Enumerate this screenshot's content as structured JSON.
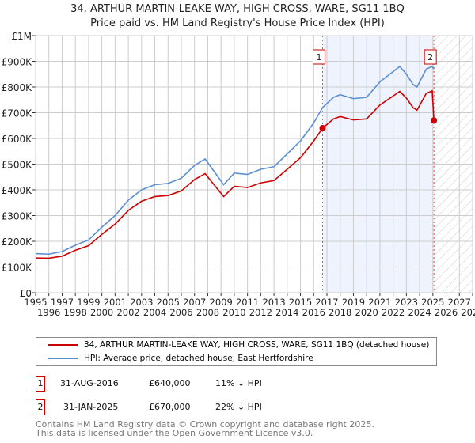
{
  "title": "34, ARTHUR MARTIN-LEAKE WAY, HIGH CROSS, WARE, SG11 1BQ",
  "subtitle": "Price paid vs. HM Land Registry's House Price Index (HPI)",
  "chart_data": {
    "type": "line",
    "xlim": [
      1995,
      2028
    ],
    "ylim": [
      0,
      1000000
    ],
    "yticks": [
      {
        "v": 0,
        "l": "£0"
      },
      {
        "v": 100000,
        "l": "£100K"
      },
      {
        "v": 200000,
        "l": "£200K"
      },
      {
        "v": 300000,
        "l": "£300K"
      },
      {
        "v": 400000,
        "l": "£400K"
      },
      {
        "v": 500000,
        "l": "£500K"
      },
      {
        "v": 600000,
        "l": "£600K"
      },
      {
        "v": 700000,
        "l": "£700K"
      },
      {
        "v": 800000,
        "l": "£800K"
      },
      {
        "v": 900000,
        "l": "£900K"
      },
      {
        "v": 1000000,
        "l": "£1M"
      }
    ],
    "xticks": [
      "1995",
      "1996",
      "1997",
      "1998",
      "1999",
      "2000",
      "2001",
      "2002",
      "2003",
      "2004",
      "2005",
      "2006",
      "2007",
      "2008",
      "2009",
      "2010",
      "2011",
      "2012",
      "2013",
      "2014",
      "2015",
      "2016",
      "2017",
      "2018",
      "2019",
      "2020",
      "2021",
      "2022",
      "2023",
      "2024",
      "2025",
      "2026",
      "2027",
      "2028"
    ],
    "grid": true,
    "series": [
      {
        "name": "34, ARTHUR MARTIN-LEAKE WAY, HIGH CROSS, WARE, SG11 1BQ (detached house)",
        "color": "#cc0000",
        "x": [
          1995,
          1996,
          1997,
          1998,
          1999,
          2000,
          2001,
          2002,
          2003,
          2004,
          2005,
          2006,
          2007,
          2007.8,
          2008.5,
          2009.2,
          2010,
          2011,
          2012,
          2013,
          2014,
          2015,
          2016,
          2016.67,
          2017.5,
          2018,
          2019,
          2020,
          2021,
          2022,
          2022.5,
          2023,
          2023.5,
          2023.8,
          2024.5,
          2024.95,
          2025.08
        ],
        "y": [
          135000,
          134000,
          142000,
          165000,
          183000,
          227000,
          267000,
          320000,
          356000,
          374000,
          378000,
          396000,
          440000,
          463000,
          418000,
          374000,
          414000,
          409000,
          427000,
          436000,
          480000,
          525000,
          590000,
          640000,
          676000,
          685000,
          672000,
          676000,
          730000,
          765000,
          783000,
          757000,
          720000,
          710000,
          775000,
          785000,
          670000
        ]
      },
      {
        "name": "HPI: Average price, detached house, East Hertfordshire",
        "color": "#5b8fd0",
        "x": [
          1995,
          1996,
          1997,
          1998,
          1999,
          2000,
          2001,
          2002,
          2003,
          2004,
          2005,
          2006,
          2007,
          2007.8,
          2008.5,
          2009.2,
          2010,
          2011,
          2012,
          2013,
          2014,
          2015,
          2016,
          2016.67,
          2017.5,
          2018,
          2019,
          2020,
          2021,
          2022,
          2022.5,
          2023,
          2023.5,
          2023.8,
          2024.5,
          2024.95,
          2025.08
        ],
        "y": [
          152000,
          150000,
          160000,
          185000,
          205000,
          255000,
          300000,
          360000,
          400000,
          420000,
          425000,
          445000,
          495000,
          520000,
          470000,
          420000,
          465000,
          460000,
          480000,
          490000,
          540000,
          590000,
          660000,
          720000,
          760000,
          770000,
          755000,
          760000,
          820000,
          860000,
          880000,
          850000,
          810000,
          800000,
          870000,
          880000,
          870000
        ]
      }
    ],
    "sales": [
      {
        "label": "1",
        "x": 2016.67,
        "y": 640000
      },
      {
        "label": "2",
        "x": 2025.08,
        "y": 670000
      }
    ],
    "shaded_range": [
      2016.67,
      2025.08
    ],
    "forecast_hatched_from": 2025.08
  },
  "legend": [
    "34, ARTHUR MARTIN-LEAKE WAY, HIGH CROSS, WARE, SG11 1BQ (detached house)",
    "HPI: Average price, detached house, East Hertfordshire"
  ],
  "table": [
    {
      "n": "1",
      "date": "31-AUG-2016",
      "price": "£640,000",
      "hpi": "11% ↓ HPI"
    },
    {
      "n": "2",
      "date": "31-JAN-2025",
      "price": "£670,000",
      "hpi": "22% ↓ HPI"
    }
  ],
  "footer": [
    "Contains HM Land Registry data © Crown copyright and database right 2025.",
    "This data is licensed under the Open Government Licence v3.0."
  ]
}
